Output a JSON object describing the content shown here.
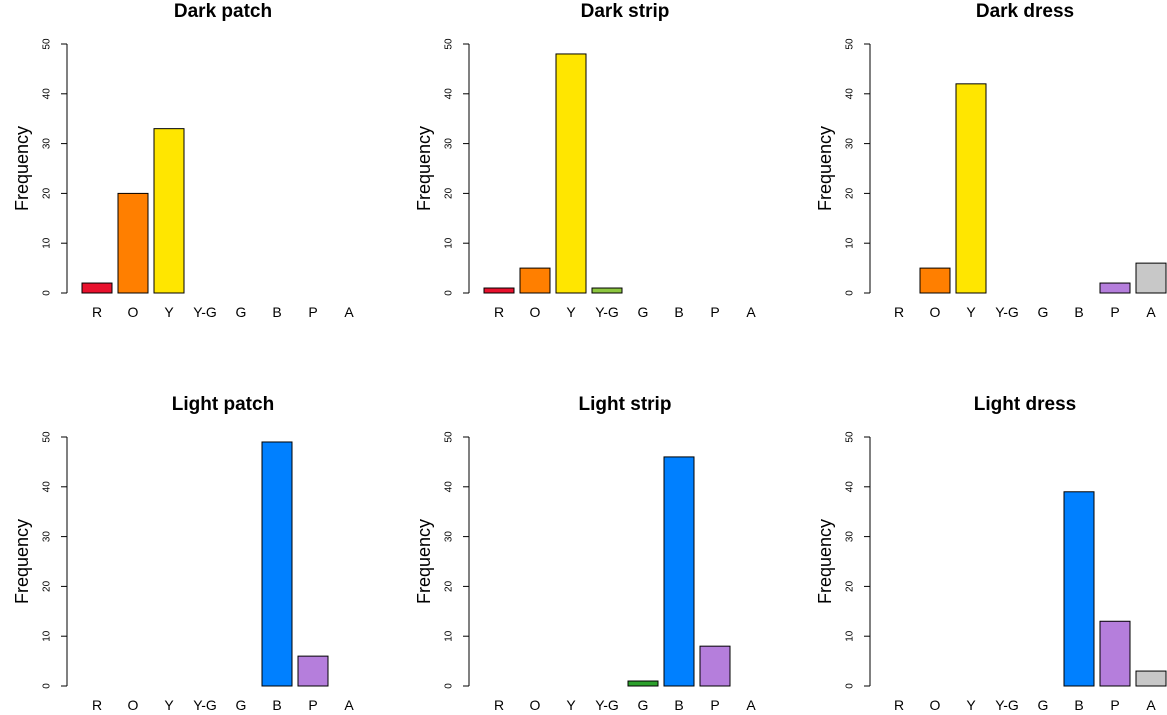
{
  "chart_data": [
    {
      "type": "bar",
      "title": "Dark patch",
      "ylabel": "Frequency",
      "ylim": [
        0,
        50
      ],
      "yticks": [
        "0",
        "10",
        "20",
        "30",
        "40",
        "50"
      ],
      "categories": [
        "R",
        "O",
        "Y",
        "Y-G",
        "G",
        "B",
        "P",
        "A"
      ],
      "values": [
        2,
        20,
        33,
        0,
        0,
        0,
        0,
        0
      ]
    },
    {
      "type": "bar",
      "title": "Dark strip",
      "ylabel": "Frequency",
      "ylim": [
        0,
        50
      ],
      "yticks": [
        "0",
        "10",
        "20",
        "30",
        "40",
        "50"
      ],
      "categories": [
        "R",
        "O",
        "Y",
        "Y-G",
        "G",
        "B",
        "P",
        "A"
      ],
      "values": [
        1,
        5,
        48,
        1,
        0,
        0,
        0,
        0
      ]
    },
    {
      "type": "bar",
      "title": "Dark dress",
      "ylabel": "Frequency",
      "ylim": [
        0,
        50
      ],
      "yticks": [
        "0",
        "10",
        "20",
        "30",
        "40",
        "50"
      ],
      "categories": [
        "R",
        "O",
        "Y",
        "Y-G",
        "G",
        "B",
        "P",
        "A"
      ],
      "values": [
        0,
        5,
        42,
        0,
        0,
        0,
        2,
        6
      ]
    },
    {
      "type": "bar",
      "title": "Light patch",
      "ylabel": "Frequency",
      "ylim": [
        0,
        50
      ],
      "yticks": [
        "0",
        "10",
        "20",
        "30",
        "40",
        "50"
      ],
      "categories": [
        "R",
        "O",
        "Y",
        "Y-G",
        "G",
        "B",
        "P",
        "A"
      ],
      "values": [
        0,
        0,
        0,
        0,
        0,
        49,
        6,
        0
      ]
    },
    {
      "type": "bar",
      "title": "Light strip",
      "ylabel": "Frequency",
      "ylim": [
        0,
        50
      ],
      "yticks": [
        "0",
        "10",
        "20",
        "30",
        "40",
        "50"
      ],
      "categories": [
        "R",
        "O",
        "Y",
        "Y-G",
        "G",
        "B",
        "P",
        "A"
      ],
      "values": [
        0,
        0,
        0,
        0,
        1,
        46,
        8,
        0
      ]
    },
    {
      "type": "bar",
      "title": "Light dress",
      "ylabel": "Frequency",
      "ylim": [
        0,
        50
      ],
      "yticks": [
        "0",
        "10",
        "20",
        "30",
        "40",
        "50"
      ],
      "categories": [
        "R",
        "O",
        "Y",
        "Y-G",
        "G",
        "B",
        "P",
        "A"
      ],
      "values": [
        0,
        0,
        0,
        0,
        0,
        39,
        13,
        3
      ]
    }
  ],
  "category_colors": {
    "R": "#e8112d",
    "O": "#ff7f00",
    "Y": "#ffe600",
    "Y-G": "#8cc63f",
    "G": "#2ca02c",
    "B": "#0080ff",
    "P": "#b57edc",
    "A": "#c8c8c8"
  }
}
